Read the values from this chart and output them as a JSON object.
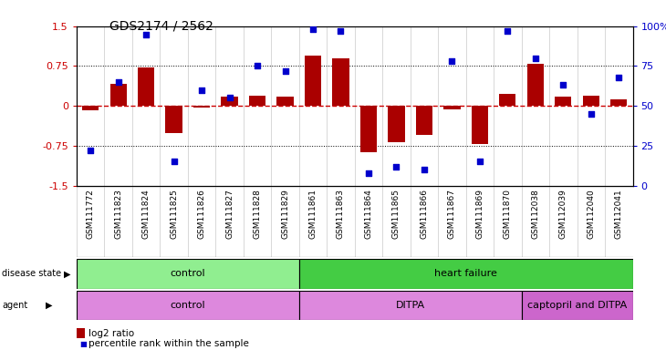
{
  "title": "GDS2174 / 2562",
  "samples": [
    "GSM111772",
    "GSM111823",
    "GSM111824",
    "GSM111825",
    "GSM111826",
    "GSM111827",
    "GSM111828",
    "GSM111829",
    "GSM111861",
    "GSM111863",
    "GSM111864",
    "GSM111865",
    "GSM111866",
    "GSM111867",
    "GSM111869",
    "GSM111870",
    "GSM112038",
    "GSM112039",
    "GSM112040",
    "GSM112041"
  ],
  "log2_ratio": [
    -0.08,
    0.42,
    0.72,
    -0.52,
    -0.04,
    0.18,
    0.2,
    0.18,
    0.95,
    0.9,
    -0.88,
    -0.68,
    -0.55,
    -0.06,
    -0.72,
    0.22,
    0.8,
    0.18,
    0.2,
    0.12
  ],
  "percentile": [
    22,
    65,
    95,
    15,
    60,
    55,
    75,
    72,
    98,
    97,
    8,
    12,
    10,
    78,
    15,
    97,
    80,
    63,
    45,
    68
  ],
  "ylim_left": [
    -1.5,
    1.5
  ],
  "ylim_right": [
    0,
    100
  ],
  "yticks_left": [
    -1.5,
    -0.75,
    0,
    0.75,
    1.5
  ],
  "yticks_right": [
    0,
    25,
    50,
    75,
    100
  ],
  "hlines_dotted": [
    0.75,
    -0.75
  ],
  "bar_color": "#AA0000",
  "dot_color": "#0000CC",
  "zero_line_color": "#CC0000",
  "disease_state_groups": [
    {
      "label": "control",
      "start": 0,
      "end": 7,
      "color": "#90EE90"
    },
    {
      "label": "heart failure",
      "start": 8,
      "end": 19,
      "color": "#44CC44"
    }
  ],
  "agent_groups": [
    {
      "label": "control",
      "start": 0,
      "end": 7,
      "color": "#DD88DD"
    },
    {
      "label": "DITPA",
      "start": 8,
      "end": 15,
      "color": "#DD88DD"
    },
    {
      "label": "captopril and DITPA",
      "start": 16,
      "end": 19,
      "color": "#CC66CC"
    }
  ],
  "legend_bar_label": "log2 ratio",
  "legend_dot_label": "percentile rank within the sample",
  "bg_color": "#FFFFFF",
  "tick_label_color_left": "#CC0000",
  "tick_label_color_right": "#0000CC",
  "label_fontsize": 7.5,
  "tick_fontsize": 8,
  "sample_label_fontsize": 6.5
}
